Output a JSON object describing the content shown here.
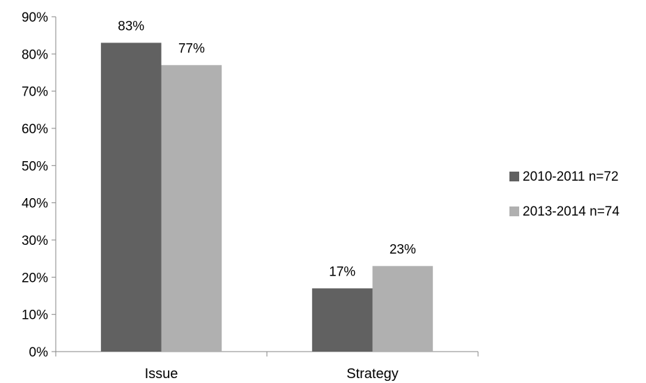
{
  "chart_data": {
    "type": "bar",
    "categories": [
      "Issue",
      "Strategy"
    ],
    "series": [
      {
        "name": "2010-2011 n=72",
        "values": [
          83,
          17
        ],
        "color": "#616161"
      },
      {
        "name": "2013-2014 n=74",
        "values": [
          77,
          23
        ],
        "color": "#b0b0b0"
      }
    ],
    "data_labels": [
      [
        "83%",
        "17%"
      ],
      [
        "77%",
        "23%"
      ]
    ],
    "ylim": [
      0,
      90
    ],
    "yticks": [
      "0%",
      "10%",
      "20%",
      "30%",
      "40%",
      "50%",
      "60%",
      "70%",
      "80%",
      "90%"
    ],
    "title": "",
    "xlabel": "",
    "ylabel": "",
    "grid": false,
    "legend_position": "right"
  }
}
